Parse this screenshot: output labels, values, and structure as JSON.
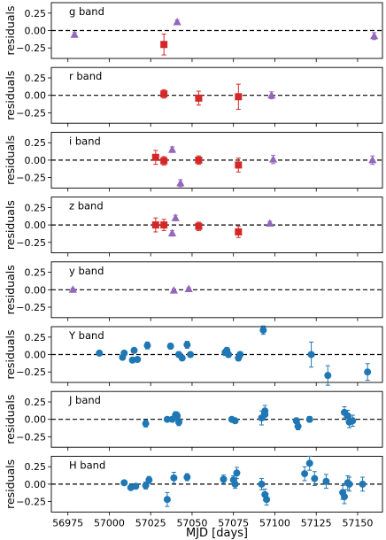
{
  "figure": {
    "ylabel": "residuals",
    "xlabel": "MJD [days]",
    "colors": {
      "square": "#d62728",
      "triangle": "#9467bd",
      "circle": "#1f77b4"
    }
  },
  "chart_data": [
    {
      "type": "scatter",
      "band": "g",
      "label": "g band",
      "xlim": [
        56965,
        57165
      ],
      "ylim": [
        -0.4,
        0.4
      ],
      "yticks": [
        -0.25,
        0.0,
        0.25
      ],
      "ytick_labels": [
        "−0.25",
        "0.00",
        "0.25"
      ],
      "zero_line": true,
      "series": [
        {
          "marker": "triangle",
          "color": "#9467bd",
          "points": [
            {
              "x": 56979,
              "y": -0.06,
              "err": 0.03
            },
            {
              "x": 57041,
              "y": 0.12,
              "err": 0.03
            },
            {
              "x": 57160,
              "y": -0.08,
              "err": 0.05
            }
          ]
        },
        {
          "marker": "square",
          "color": "#d62728",
          "points": [
            {
              "x": 57033,
              "y": -0.2,
              "err": 0.15
            }
          ]
        }
      ]
    },
    {
      "type": "scatter",
      "band": "r",
      "label": "r band",
      "xlim": [
        56965,
        57165
      ],
      "ylim": [
        -0.4,
        0.4
      ],
      "yticks": [
        -0.25,
        0.0,
        0.25
      ],
      "ytick_labels": [
        "−0.25",
        "0.00",
        "0.25"
      ],
      "zero_line": true,
      "series": [
        {
          "marker": "square",
          "color": "#d62728",
          "points": [
            {
              "x": 57033,
              "y": 0.02,
              "err": 0.06
            },
            {
              "x": 57054,
              "y": -0.04,
              "err": 0.1
            },
            {
              "x": 57078,
              "y": -0.02,
              "err": 0.18
            }
          ]
        },
        {
          "marker": "triangle",
          "color": "#9467bd",
          "points": [
            {
              "x": 57098,
              "y": 0.0,
              "err": 0.05
            }
          ]
        }
      ]
    },
    {
      "type": "scatter",
      "band": "i",
      "label": "i band",
      "xlim": [
        56965,
        57165
      ],
      "ylim": [
        -0.4,
        0.4
      ],
      "yticks": [
        -0.25,
        0.0,
        0.25
      ],
      "ytick_labels": [
        "−0.25",
        "0.00",
        "0.25"
      ],
      "zero_line": true,
      "series": [
        {
          "marker": "square",
          "color": "#d62728",
          "points": [
            {
              "x": 57028,
              "y": 0.04,
              "err": 0.1
            },
            {
              "x": 57033,
              "y": -0.01,
              "err": 0.06
            },
            {
              "x": 57054,
              "y": 0.0,
              "err": 0.06
            },
            {
              "x": 57078,
              "y": -0.07,
              "err": 0.1
            }
          ]
        },
        {
          "marker": "triangle",
          "color": "#9467bd",
          "points": [
            {
              "x": 57038,
              "y": 0.15,
              "err": 0.04
            },
            {
              "x": 57043,
              "y": -0.33,
              "err": 0.05
            },
            {
              "x": 57099,
              "y": 0.01,
              "err": 0.06
            },
            {
              "x": 57159,
              "y": 0.0,
              "err": 0.06
            }
          ]
        }
      ]
    },
    {
      "type": "scatter",
      "band": "z",
      "label": "z band",
      "xlim": [
        56965,
        57165
      ],
      "ylim": [
        -0.4,
        0.4
      ],
      "yticks": [
        -0.25,
        0.0,
        0.25
      ],
      "ytick_labels": [
        "−0.25",
        "0.00",
        "0.25"
      ],
      "zero_line": true,
      "series": [
        {
          "marker": "square",
          "color": "#d62728",
          "points": [
            {
              "x": 57028,
              "y": 0.0,
              "err": 0.1
            },
            {
              "x": 57033,
              "y": 0.0,
              "err": 0.08
            },
            {
              "x": 57054,
              "y": -0.02,
              "err": 0.06
            },
            {
              "x": 57078,
              "y": -0.1,
              "err": 0.08
            }
          ]
        },
        {
          "marker": "triangle",
          "color": "#9467bd",
          "points": [
            {
              "x": 57038,
              "y": -0.12,
              "err": 0.04
            },
            {
              "x": 57040,
              "y": 0.1,
              "err": 0.04
            },
            {
              "x": 57097,
              "y": 0.02,
              "err": 0.03
            }
          ]
        }
      ]
    },
    {
      "type": "scatter",
      "band": "y",
      "label": "y band",
      "xlim": [
        56965,
        57165
      ],
      "ylim": [
        -0.4,
        0.4
      ],
      "yticks": [
        -0.25,
        0.0,
        0.25
      ],
      "ytick_labels": [
        "−0.25",
        "0.00",
        "0.25"
      ],
      "zero_line": true,
      "series": [
        {
          "marker": "triangle",
          "color": "#9467bd",
          "points": [
            {
              "x": 56978,
              "y": 0.0,
              "err": 0.02
            },
            {
              "x": 57039,
              "y": -0.01,
              "err": 0.02
            },
            {
              "x": 57048,
              "y": 0.01,
              "err": 0.02
            }
          ]
        }
      ]
    },
    {
      "type": "scatter",
      "band": "Y",
      "label": "Y band",
      "xlim": [
        56965,
        57165
      ],
      "ylim": [
        -0.4,
        0.4
      ],
      "yticks": [
        -0.25,
        0.0,
        0.25
      ],
      "ytick_labels": [
        "−0.25",
        "0.00",
        "0.25"
      ],
      "zero_line": true,
      "series": [
        {
          "marker": "circle",
          "color": "#1f77b4",
          "points": [
            {
              "x": 56994,
              "y": 0.02,
              "err": 0.02
            },
            {
              "x": 57008,
              "y": -0.04,
              "err": 0.02
            },
            {
              "x": 57009,
              "y": 0.02,
              "err": 0.02
            },
            {
              "x": 57014,
              "y": -0.08,
              "err": 0.03
            },
            {
              "x": 57015,
              "y": 0.06,
              "err": 0.03
            },
            {
              "x": 57017,
              "y": -0.07,
              "err": 0.03
            },
            {
              "x": 57023,
              "y": 0.13,
              "err": 0.05
            },
            {
              "x": 57037,
              "y": 0.12,
              "err": 0.04
            },
            {
              "x": 57042,
              "y": 0.0,
              "err": 0.04
            },
            {
              "x": 57044,
              "y": -0.05,
              "err": 0.03
            },
            {
              "x": 57047,
              "y": 0.14,
              "err": 0.05
            },
            {
              "x": 57049,
              "y": 0.0,
              "err": 0.03
            },
            {
              "x": 57070,
              "y": 0.03,
              "err": 0.04
            },
            {
              "x": 57071,
              "y": 0.06,
              "err": 0.04
            },
            {
              "x": 57072,
              "y": 0.0,
              "err": 0.04
            },
            {
              "x": 57078,
              "y": -0.05,
              "err": 0.04
            },
            {
              "x": 57079,
              "y": 0.0,
              "err": 0.04
            },
            {
              "x": 57093,
              "y": 0.35,
              "err": 0.06
            },
            {
              "x": 57122,
              "y": 0.0,
              "err": 0.18
            },
            {
              "x": 57132,
              "y": -0.3,
              "err": 0.14
            },
            {
              "x": 57156,
              "y": -0.25,
              "err": 0.12
            }
          ]
        }
      ]
    },
    {
      "type": "scatter",
      "band": "J",
      "label": "J band",
      "xlim": [
        56965,
        57165
      ],
      "ylim": [
        -0.4,
        0.4
      ],
      "yticks": [
        -0.25,
        0.0,
        0.25
      ],
      "ytick_labels": [
        "−0.25",
        "0.00",
        "0.25"
      ],
      "zero_line": true,
      "series": [
        {
          "marker": "circle",
          "color": "#1f77b4",
          "points": [
            {
              "x": 57022,
              "y": -0.06,
              "err": 0.05
            },
            {
              "x": 57035,
              "y": 0.0,
              "err": 0.03
            },
            {
              "x": 57038,
              "y": 0.0,
              "err": 0.03
            },
            {
              "x": 57040,
              "y": 0.06,
              "err": 0.05
            },
            {
              "x": 57041,
              "y": 0.05,
              "err": 0.05
            },
            {
              "x": 57042,
              "y": -0.04,
              "err": 0.05
            },
            {
              "x": 57074,
              "y": 0.0,
              "err": 0.03
            },
            {
              "x": 57076,
              "y": -0.02,
              "err": 0.03
            },
            {
              "x": 57092,
              "y": 0.02,
              "err": 0.1
            },
            {
              "x": 57094,
              "y": 0.12,
              "err": 0.08
            },
            {
              "x": 57094,
              "y": 0.07,
              "err": 0.08
            },
            {
              "x": 57113,
              "y": -0.02,
              "err": 0.04
            },
            {
              "x": 57114,
              "y": -0.1,
              "err": 0.05
            },
            {
              "x": 57121,
              "y": 0.0,
              "err": 0.04
            },
            {
              "x": 57142,
              "y": 0.1,
              "err": 0.08
            },
            {
              "x": 57144,
              "y": 0.05,
              "err": 0.08
            },
            {
              "x": 57145,
              "y": -0.04,
              "err": 0.08
            },
            {
              "x": 57147,
              "y": -0.02,
              "err": 0.08
            }
          ]
        }
      ]
    },
    {
      "type": "scatter",
      "band": "H",
      "label": "H band",
      "xlim": [
        56965,
        57165
      ],
      "ylim": [
        -0.4,
        0.4
      ],
      "yticks": [
        -0.25,
        0.0,
        0.25
      ],
      "ytick_labels": [
        "−0.25",
        "0.00",
        "0.25"
      ],
      "zero_line": true,
      "series": [
        {
          "marker": "circle",
          "color": "#1f77b4",
          "points": [
            {
              "x": 57009,
              "y": 0.02,
              "err": 0.03
            },
            {
              "x": 57013,
              "y": -0.05,
              "err": 0.03
            },
            {
              "x": 57016,
              "y": -0.03,
              "err": 0.03
            },
            {
              "x": 57022,
              "y": -0.02,
              "err": 0.05
            },
            {
              "x": 57024,
              "y": 0.06,
              "err": 0.05
            },
            {
              "x": 57035,
              "y": -0.22,
              "err": 0.1
            },
            {
              "x": 57039,
              "y": 0.09,
              "err": 0.08
            },
            {
              "x": 57047,
              "y": 0.1,
              "err": 0.05
            },
            {
              "x": 57069,
              "y": 0.07,
              "err": 0.06
            },
            {
              "x": 57075,
              "y": 0.06,
              "err": 0.06
            },
            {
              "x": 57076,
              "y": 0.0,
              "err": 0.06
            },
            {
              "x": 57077,
              "y": 0.16,
              "err": 0.08
            },
            {
              "x": 57092,
              "y": 0.0,
              "err": 0.08
            },
            {
              "x": 57094,
              "y": -0.15,
              "err": 0.08
            },
            {
              "x": 57095,
              "y": -0.22,
              "err": 0.08
            },
            {
              "x": 57118,
              "y": 0.15,
              "err": 0.1
            },
            {
              "x": 57121,
              "y": 0.3,
              "err": 0.1
            },
            {
              "x": 57124,
              "y": 0.08,
              "err": 0.1
            },
            {
              "x": 57131,
              "y": 0.04,
              "err": 0.1
            },
            {
              "x": 57141,
              "y": -0.12,
              "err": 0.1
            },
            {
              "x": 57142,
              "y": -0.18,
              "err": 0.1
            },
            {
              "x": 57144,
              "y": 0.02,
              "err": 0.1
            },
            {
              "x": 57145,
              "y": 0.0,
              "err": 0.1
            },
            {
              "x": 57153,
              "y": 0.0,
              "err": 0.1
            }
          ]
        }
      ]
    }
  ],
  "xaxis": {
    "ticks": [
      56975,
      57000,
      57025,
      57050,
      57075,
      57100,
      57125,
      57150
    ],
    "tick_labels": [
      "56975",
      "57000",
      "57025",
      "57050",
      "57075",
      "57100",
      "57125",
      "57150"
    ]
  }
}
